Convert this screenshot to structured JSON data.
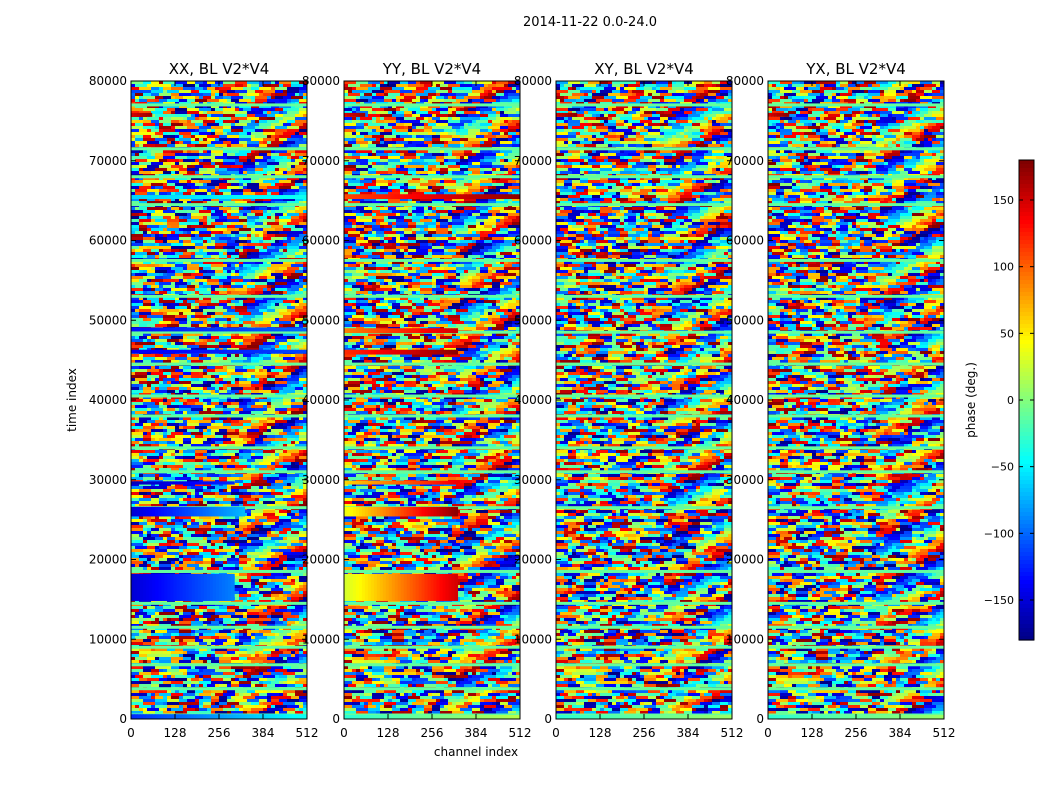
{
  "chart_data": {
    "type": "heatmap",
    "suptitle": "2014-11-22 0.0-24.0",
    "xlabel": "channel index",
    "ylabel": "time index",
    "xlim": [
      0,
      512
    ],
    "ylim": [
      0,
      80000
    ],
    "xticks": [
      0,
      128,
      256,
      384,
      512
    ],
    "yticks": [
      0,
      10000,
      20000,
      30000,
      40000,
      50000,
      60000,
      70000,
      80000
    ],
    "xtick_labels": [
      "0",
      "128",
      "256",
      "384",
      "512"
    ],
    "ytick_labels": [
      "0",
      "10000",
      "20000",
      "30000",
      "40000",
      "50000",
      "60000",
      "70000",
      "80000"
    ],
    "colormap": "jet",
    "panels": [
      {
        "title": "XX, BL V2*V4",
        "flagged_rows": [
          500,
          3800,
          6800,
          9000,
          11500,
          14500,
          18500,
          26500,
          31000,
          34000,
          38000,
          40500,
          44500,
          48500,
          53000,
          57500,
          64500,
          68000,
          71500,
          77000
        ],
        "features": [
          {
            "t0": 0,
            "t1": 600,
            "c0": 0,
            "c1": 512,
            "phase0": -120,
            "phase1": -40
          },
          {
            "t0": 14800,
            "t1": 18200,
            "c0": 0,
            "c1": 300,
            "phase0": -150,
            "phase1": -90
          },
          {
            "t0": 25400,
            "t1": 26600,
            "c0": 0,
            "c1": 330,
            "phase0": -150,
            "phase1": -70
          },
          {
            "t0": 29400,
            "t1": 29800,
            "c0": 0,
            "c1": 300,
            "phase0": -160,
            "phase1": -120
          },
          {
            "t0": 45800,
            "t1": 46300,
            "c0": 0,
            "c1": 512,
            "phase0": -140,
            "phase1": -110
          },
          {
            "t0": 48600,
            "t1": 49100,
            "c0": 0,
            "c1": 512,
            "phase0": -130,
            "phase1": -100
          },
          {
            "t0": 65200,
            "t1": 65700,
            "c0": 0,
            "c1": 512,
            "phase0": -60,
            "phase1": -40
          },
          {
            "t0": 75500,
            "t1": 76000,
            "c0": 0,
            "c1": 60,
            "phase0": 150,
            "phase1": 170
          }
        ]
      },
      {
        "title": "YY, BL V2*V4",
        "flagged_rows": [
          500,
          3800,
          6800,
          9000,
          11500,
          14500,
          18500,
          26500,
          31000,
          34000,
          38000,
          40500,
          44500,
          48500,
          53000,
          57500,
          64500,
          68000,
          71500,
          77000
        ],
        "features": [
          {
            "t0": 0,
            "t1": 500,
            "c0": 0,
            "c1": 512,
            "phase0": -30,
            "phase1": 20
          },
          {
            "t0": 14800,
            "t1": 18200,
            "c0": 0,
            "c1": 330,
            "phase0": 30,
            "phase1": 150
          },
          {
            "t0": 25400,
            "t1": 26600,
            "c0": 0,
            "c1": 330,
            "phase0": 40,
            "phase1": 175
          },
          {
            "t0": 29400,
            "t1": 29900,
            "c0": 0,
            "c1": 330,
            "phase0": 60,
            "phase1": 140
          },
          {
            "t0": 45700,
            "t1": 46300,
            "c0": 0,
            "c1": 330,
            "phase0": 120,
            "phase1": 175
          },
          {
            "t0": 48400,
            "t1": 49000,
            "c0": 0,
            "c1": 330,
            "phase0": 90,
            "phase1": 150
          },
          {
            "t0": 65200,
            "t1": 65800,
            "c0": 0,
            "c1": 512,
            "phase0": 110,
            "phase1": 175
          },
          {
            "t0": 75500,
            "t1": 76000,
            "c0": 0,
            "c1": 60,
            "phase0": 150,
            "phase1": 170
          }
        ]
      },
      {
        "title": "XY, BL V2*V4",
        "flagged_rows": [
          500,
          3800,
          6800,
          9000,
          11500,
          14500,
          18500,
          26500,
          31000,
          34000,
          38000,
          40500,
          44500,
          48500,
          53000,
          57500,
          64500,
          68000,
          71500,
          77000
        ],
        "features": [
          {
            "t0": 0,
            "t1": 500,
            "c0": 0,
            "c1": 512,
            "phase0": -30,
            "phase1": 10
          },
          {
            "t0": 75500,
            "t1": 76000,
            "c0": 0,
            "c1": 60,
            "phase0": 150,
            "phase1": 175
          }
        ]
      },
      {
        "title": "YX, BL V2*V4",
        "flagged_rows": [
          500,
          3800,
          6800,
          9000,
          11500,
          14500,
          18500,
          26500,
          31000,
          34000,
          38000,
          40500,
          44500,
          48500,
          53000,
          57500,
          64500,
          68000,
          71500,
          77000
        ],
        "features": [
          {
            "t0": 0,
            "t1": 500,
            "c0": 0,
            "c1": 512,
            "phase0": -30,
            "phase1": 10
          },
          {
            "t0": 75500,
            "t1": 76000,
            "c0": 0,
            "c1": 60,
            "phase0": 150,
            "phase1": 175
          }
        ]
      }
    ],
    "colorbar": {
      "label": "phase (deg.)",
      "range": [
        -180,
        180
      ],
      "ticks": [
        -150,
        -100,
        -50,
        0,
        50,
        100,
        150
      ],
      "tick_labels": [
        "−150",
        "−100",
        "−50",
        "0",
        "50",
        "100",
        "150"
      ]
    }
  }
}
